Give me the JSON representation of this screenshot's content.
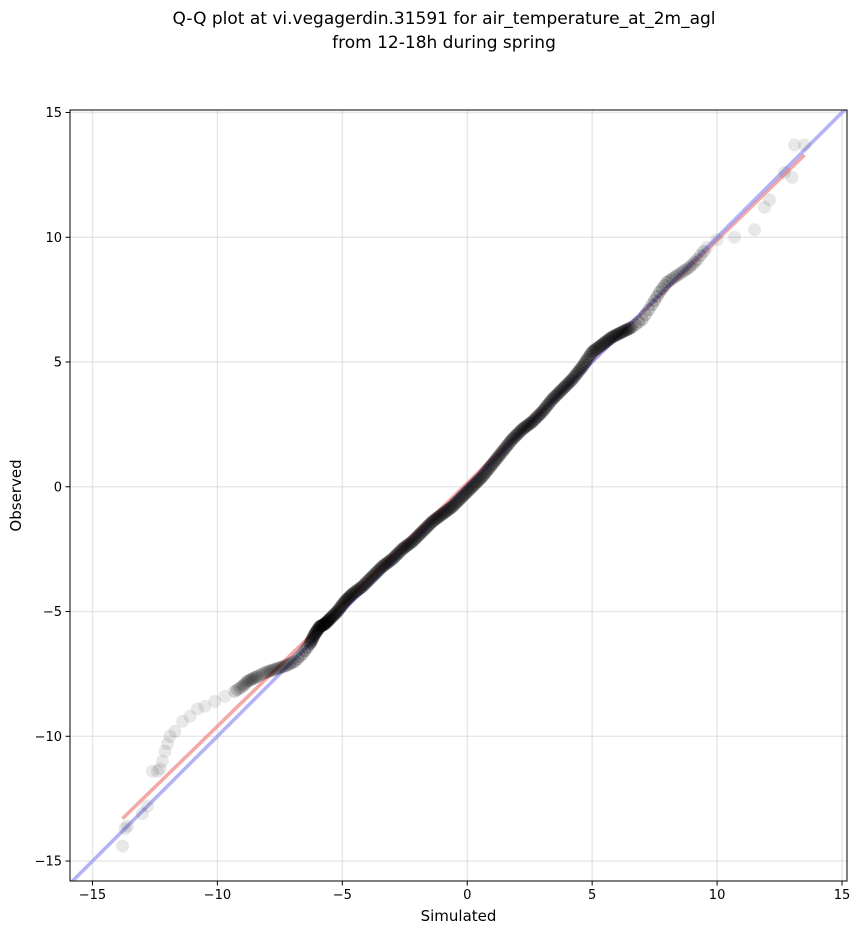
{
  "chart_data": {
    "type": "scatter",
    "title": "Q-Q plot at vi.vegagerdin.31591 for air_temperature_at_2m_agl",
    "subtitle": "from 12-18h during spring",
    "xlabel": "Simulated",
    "ylabel": "Observed",
    "xlim": [
      -15.9,
      15.2
    ],
    "ylim": [
      -15.8,
      15.1
    ],
    "x_ticks": [
      -15,
      -10,
      -5,
      0,
      5,
      10,
      15
    ],
    "y_ticks": [
      -15,
      -10,
      -5,
      0,
      5,
      10,
      15
    ],
    "x_tick_labels": [
      "−15",
      "−10",
      "−5",
      "0",
      "5",
      "10",
      "15"
    ],
    "y_tick_labels": [
      "−15",
      "−10",
      "−5",
      "0",
      "5",
      "10",
      "15"
    ],
    "grid": true,
    "series": [
      {
        "kind": "quantile_points",
        "color": "#000000",
        "points": [
          [
            -13.8,
            -14.4
          ],
          [
            -13.7,
            -13.7
          ],
          [
            -13.6,
            -13.6
          ],
          [
            -13.0,
            -13.1
          ],
          [
            -12.8,
            -12.8
          ],
          [
            -12.6,
            -11.4
          ],
          [
            -12.4,
            -11.4
          ],
          [
            -12.3,
            -11.3
          ],
          [
            -12.2,
            -11.0
          ],
          [
            -12.1,
            -10.6
          ],
          [
            -12.0,
            -10.3
          ],
          [
            -11.9,
            -10.0
          ],
          [
            -11.7,
            -9.8
          ],
          [
            -11.4,
            -9.4
          ],
          [
            -11.1,
            -9.2
          ],
          [
            -10.8,
            -8.9
          ],
          [
            -10.5,
            -8.8
          ],
          [
            -10.1,
            -8.6
          ],
          [
            -9.7,
            -8.4
          ],
          [
            -9.3,
            -8.2
          ],
          [
            -9.0,
            -8.0
          ],
          [
            -8.8,
            -7.8
          ],
          [
            -8.6,
            -7.7
          ],
          [
            -8.4,
            -7.6
          ],
          [
            -8.1,
            -7.45
          ],
          [
            -7.8,
            -7.35
          ],
          [
            -7.5,
            -7.25
          ],
          [
            -7.2,
            -7.15
          ],
          [
            -6.9,
            -7.0
          ],
          [
            -6.6,
            -6.7
          ],
          [
            -6.3,
            -6.3
          ],
          [
            -6.1,
            -5.9
          ],
          [
            -5.9,
            -5.6
          ],
          [
            -5.7,
            -5.5
          ],
          [
            -5.5,
            -5.3
          ],
          [
            -5.2,
            -5.0
          ],
          [
            -4.9,
            -4.6
          ],
          [
            -4.6,
            -4.3
          ],
          [
            -4.2,
            -4.0
          ],
          [
            -3.8,
            -3.6
          ],
          [
            -3.4,
            -3.2
          ],
          [
            -3.0,
            -2.9
          ],
          [
            -2.6,
            -2.5
          ],
          [
            -2.2,
            -2.2
          ],
          [
            -1.8,
            -1.8
          ],
          [
            -1.4,
            -1.4
          ],
          [
            -1.0,
            -1.1
          ],
          [
            -0.6,
            -0.8
          ],
          [
            -0.2,
            -0.4
          ],
          [
            0.2,
            0.0
          ],
          [
            0.6,
            0.4
          ],
          [
            1.0,
            0.9
          ],
          [
            1.4,
            1.4
          ],
          [
            1.8,
            1.9
          ],
          [
            2.2,
            2.3
          ],
          [
            2.6,
            2.6
          ],
          [
            3.0,
            3.0
          ],
          [
            3.4,
            3.5
          ],
          [
            3.8,
            3.9
          ],
          [
            4.2,
            4.3
          ],
          [
            4.6,
            4.8
          ],
          [
            5.0,
            5.4
          ],
          [
            5.4,
            5.7
          ],
          [
            5.8,
            6.0
          ],
          [
            6.2,
            6.2
          ],
          [
            6.6,
            6.4
          ],
          [
            7.0,
            6.7
          ],
          [
            7.4,
            7.3
          ],
          [
            7.7,
            7.8
          ],
          [
            8.0,
            8.2
          ],
          [
            8.3,
            8.4
          ],
          [
            8.6,
            8.6
          ],
          [
            8.9,
            8.8
          ],
          [
            9.2,
            9.1
          ],
          [
            9.6,
            9.6
          ],
          [
            10.0,
            9.9
          ],
          [
            10.7,
            10.0
          ],
          [
            11.5,
            10.3
          ],
          [
            11.9,
            11.2
          ],
          [
            12.1,
            11.5
          ],
          [
            12.7,
            12.6
          ],
          [
            13.0,
            12.4
          ],
          [
            13.1,
            13.7
          ],
          [
            13.5,
            13.7
          ]
        ]
      },
      {
        "kind": "fit_line",
        "color": "#f28b8b",
        "x": [
          -13.8,
          13.5
        ],
        "y": [
          -13.3,
          13.3
        ]
      },
      {
        "kind": "identity_line",
        "color": "#9a9af2",
        "x": [
          -15.9,
          15.2
        ],
        "y": [
          -15.9,
          15.2
        ]
      }
    ]
  }
}
